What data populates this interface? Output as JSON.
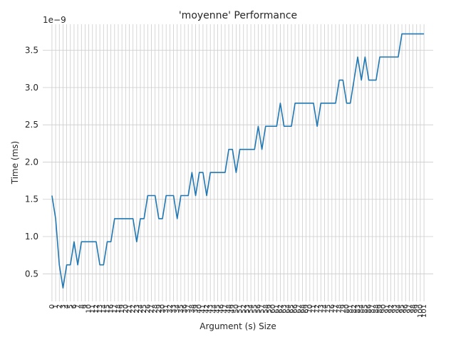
{
  "chart_data": {
    "type": "line",
    "title": "'moyenne' Performance",
    "xlabel": "Argument (s) Size",
    "ylabel": "Time (ms)",
    "offset_text": "1e−9",
    "xlim": [
      -2.5,
      103.5
    ],
    "ylim": [
      0.13,
      3.85
    ],
    "grid": true,
    "yticks": [
      0.5,
      1.0,
      1.5,
      2.0,
      2.5,
      3.0,
      3.5
    ],
    "ytick_labels": [
      "0.5",
      "1.0",
      "1.5",
      "2.0",
      "2.5",
      "3.0",
      "3.5"
    ],
    "x": [
      0,
      1,
      2,
      3,
      4,
      5,
      6,
      7,
      8,
      9,
      10,
      11,
      12,
      13,
      14,
      15,
      16,
      17,
      18,
      19,
      20,
      21,
      22,
      23,
      24,
      25,
      26,
      27,
      28,
      29,
      30,
      31,
      32,
      33,
      34,
      35,
      36,
      37,
      38,
      39,
      40,
      41,
      42,
      43,
      44,
      45,
      46,
      47,
      48,
      49,
      50,
      51,
      52,
      53,
      54,
      55,
      56,
      57,
      58,
      59,
      60,
      61,
      62,
      63,
      64,
      65,
      66,
      67,
      68,
      69,
      70,
      71,
      72,
      73,
      74,
      75,
      76,
      77,
      78,
      79,
      80,
      81,
      82,
      83,
      84,
      85,
      86,
      87,
      88,
      89,
      90,
      91,
      92,
      93,
      94,
      95,
      96,
      97,
      98,
      99,
      100,
      101
    ],
    "series": [
      {
        "color": "#1f77b4",
        "values": [
          1.55,
          1.24,
          0.62,
          0.31,
          0.62,
          0.62,
          0.93,
          0.62,
          0.93,
          0.93,
          0.93,
          0.93,
          0.93,
          0.62,
          0.62,
          0.93,
          0.93,
          1.24,
          1.24,
          1.24,
          1.24,
          1.24,
          1.24,
          0.93,
          1.24,
          1.24,
          1.55,
          1.55,
          1.55,
          1.24,
          1.24,
          1.55,
          1.55,
          1.55,
          1.24,
          1.55,
          1.55,
          1.55,
          1.86,
          1.55,
          1.86,
          1.86,
          1.55,
          1.86,
          1.86,
          1.86,
          1.86,
          1.86,
          2.17,
          2.17,
          1.86,
          2.17,
          2.17,
          2.17,
          2.17,
          2.17,
          2.48,
          2.17,
          2.48,
          2.48,
          2.48,
          2.48,
          2.79,
          2.48,
          2.48,
          2.48,
          2.79,
          2.79,
          2.79,
          2.79,
          2.79,
          2.79,
          2.48,
          2.79,
          2.79,
          2.79,
          2.79,
          2.79,
          3.1,
          3.1,
          2.79,
          2.79,
          3.1,
          3.41,
          3.1,
          3.41,
          3.1,
          3.1,
          3.1,
          3.41,
          3.41,
          3.41,
          3.41,
          3.41,
          3.41,
          3.72,
          3.72,
          3.72,
          3.72,
          3.72,
          3.72,
          3.72
        ]
      }
    ]
  }
}
